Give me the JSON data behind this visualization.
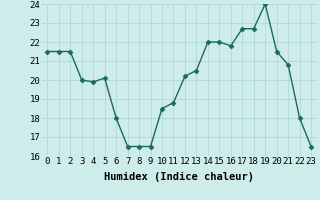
{
  "x": [
    0,
    1,
    2,
    3,
    4,
    5,
    6,
    7,
    8,
    9,
    10,
    11,
    12,
    13,
    14,
    15,
    16,
    17,
    18,
    19,
    20,
    21,
    22,
    23
  ],
  "y": [
    21.5,
    21.5,
    21.5,
    20.0,
    19.9,
    20.1,
    18.0,
    16.5,
    16.5,
    16.5,
    18.5,
    18.8,
    20.2,
    20.5,
    22.0,
    22.0,
    21.8,
    22.7,
    22.7,
    24.0,
    21.5,
    20.8,
    18.0,
    16.5
  ],
  "ylim": [
    16,
    24
  ],
  "xlim": [
    -0.5,
    23.5
  ],
  "yticks": [
    16,
    17,
    18,
    19,
    20,
    21,
    22,
    23,
    24
  ],
  "xticks": [
    0,
    1,
    2,
    3,
    4,
    5,
    6,
    7,
    8,
    9,
    10,
    11,
    12,
    13,
    14,
    15,
    16,
    17,
    18,
    19,
    20,
    21,
    22,
    23
  ],
  "xlabel": "Humidex (Indice chaleur)",
  "line_color": "#1a6b5a",
  "bg_color": "#ceecea",
  "grid_color": "#b0d8d4",
  "marker": "D",
  "marker_size": 2.5,
  "line_width": 1.0,
  "xlabel_fontsize": 7.5,
  "tick_fontsize": 6.5
}
